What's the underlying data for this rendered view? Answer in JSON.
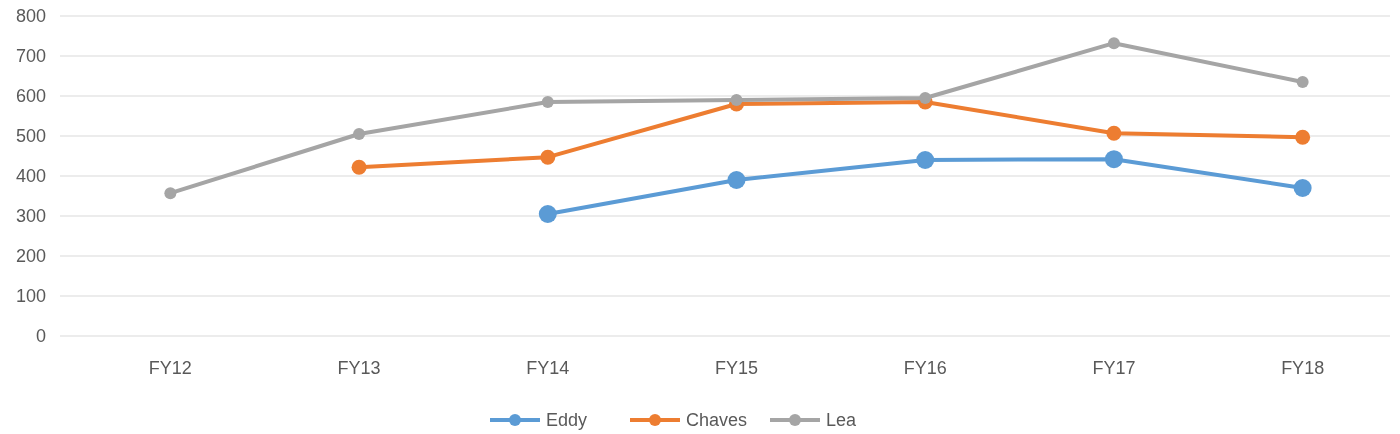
{
  "chart_data": {
    "type": "line",
    "categories": [
      "FY12",
      "FY13",
      "FY14",
      "FY15",
      "FY16",
      "FY17",
      "FY18"
    ],
    "series": [
      {
        "name": "Eddy",
        "color": "#5b9bd5",
        "values": [
          null,
          null,
          305,
          390,
          440,
          442,
          370
        ]
      },
      {
        "name": "Chaves",
        "color": "#ed7d31",
        "values": [
          null,
          422,
          447,
          580,
          585,
          507,
          497
        ]
      },
      {
        "name": "Lea",
        "color": "#a5a5a5",
        "values": [
          357,
          505,
          585,
          590,
          595,
          732,
          635
        ]
      }
    ],
    "ylim": [
      0,
      800
    ],
    "yticks": [
      0,
      100,
      200,
      300,
      400,
      500,
      600,
      700,
      800
    ],
    "grid": "y",
    "legend": "bottom",
    "marker": "circle",
    "line_style": "solid"
  }
}
